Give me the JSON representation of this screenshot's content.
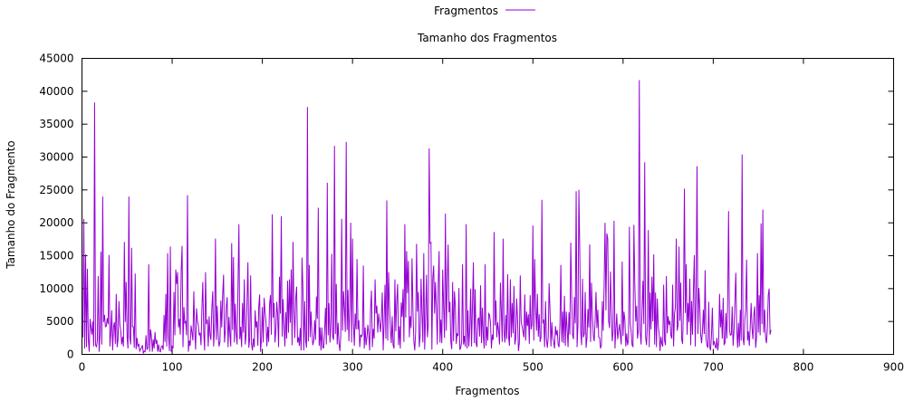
{
  "chart_data": {
    "type": "line",
    "title": "Tamanho dos Fragmentos",
    "xlabel": "Fragmentos",
    "ylabel": "Tamanho do Fragmento",
    "xlim": [
      0,
      900
    ],
    "ylim": [
      0,
      45000
    ],
    "x_ticks": [
      0,
      100,
      200,
      300,
      400,
      500,
      600,
      700,
      800,
      900
    ],
    "y_ticks": [
      0,
      5000,
      10000,
      15000,
      20000,
      25000,
      30000,
      35000,
      40000,
      45000
    ],
    "grid": false,
    "legend_position": "top-center",
    "series": [
      {
        "name": "Fragmentos",
        "color": "#9400d3",
        "x_start": 1,
        "x_step": 1,
        "values": [
          2600,
          20600,
          900,
          15200,
          1100,
          13000,
          2400,
          400,
          5400,
          4100,
          3000,
          5000,
          1200,
          38300,
          1500,
          1100,
          2000,
          11900,
          400,
          3000,
          15600,
          1500,
          24000,
          4900,
          6000,
          4200,
          4300,
          5500,
          4600,
          15100,
          1200,
          3300,
          6700,
          600,
          4200,
          4900,
          1600,
          9200,
          1100,
          2300,
          8100,
          4500,
          3600,
          1500,
          2700,
          1200,
          17100,
          4900,
          11000,
          2700,
          900,
          24000,
          2600,
          1500,
          16200,
          4200,
          4200,
          1000,
          12300,
          800,
          2500,
          1200,
          1600,
          500,
          800,
          1000,
          1400,
          200,
          500,
          400,
          2900,
          700,
          1000,
          13700,
          400,
          3800,
          2800,
          400,
          2300,
          900,
          3400,
          1600,
          2200,
          400,
          1500,
          500,
          400,
          1200,
          1300,
          700,
          6000,
          1900,
          9200,
          1200,
          15400,
          2800,
          500,
          16400,
          400,
          1200,
          900,
          9500,
          2900,
          12900,
          10700,
          12500,
          4100,
          5400,
          3000,
          12700,
          16500,
          1100,
          7200,
          4800,
          5000,
          2900,
          24200,
          400,
          2100,
          1300,
          4400,
          3300,
          2100,
          9600,
          3700,
          700,
          7000,
          5100,
          4400,
          2900,
          3300,
          1400,
          7100,
          11000,
          3300,
          600,
          12500,
          4600,
          5300,
          1200,
          5800,
          3000,
          2200,
          7000,
          9600,
          1200,
          4300,
          17600,
          2200,
          7400,
          3000,
          1200,
          1900,
          8200,
          4100,
          9100,
          12100,
          1800,
          3600,
          7200,
          8700,
          1100,
          5700,
          3100,
          1200,
          16900,
          3700,
          14800,
          1800,
          7700,
          3100,
          1500,
          10400,
          19800,
          2300,
          4200,
          1100,
          7800,
          3300,
          11400,
          1500,
          3000,
          8100,
          14000,
          1000,
          2400,
          12000,
          1600,
          600,
          2400,
          1100,
          6700,
          4100,
          5000,
          1300,
          7200,
          9100,
          400,
          2300,
          7200,
          1800,
          8600,
          6500,
          5000,
          1200,
          4200,
          1900,
          7600,
          9000,
          3000,
          21300,
          5600,
          7800,
          1800,
          3700,
          8000,
          6000,
          1100,
          11800,
          6200,
          21000,
          2700,
          8400,
          4300,
          1200,
          6400,
          2400,
          11200,
          3300,
          11400,
          4800,
          12900,
          1400,
          17100,
          6800,
          2500,
          8600,
          10300,
          1800,
          2600,
          1300,
          4000,
          600,
          14700,
          10000,
          600,
          8100,
          2100,
          1000,
          37600,
          2000,
          13600,
          2600,
          6500,
          3200,
          1400,
          2100,
          5200,
          2200,
          8800,
          5400,
          22300,
          1300,
          4100,
          600,
          4100,
          1000,
          1000,
          3500,
          7100,
          1500,
          26100,
          2900,
          7800,
          1800,
          4600,
          15300,
          2700,
          2200,
          31700,
          3100,
          10700,
          1500,
          4800,
          1700,
          500,
          2900,
          20600,
          3600,
          9600,
          7000,
          3400,
          32300,
          3700,
          9800,
          2000,
          7300,
          20000,
          1800,
          17600,
          4700,
          1300,
          6200,
          3800,
          14500,
          3800,
          5200,
          1100,
          3000,
          2700,
          3000,
          13500,
          900,
          4100,
          1400,
          2600,
          4500,
          3000,
          600,
          6900,
          9700,
          1100,
          3900,
          2400,
          11400,
          6200,
          7400,
          3300,
          6200,
          4800,
          3400,
          5700,
          9400,
          600,
          4800,
          10600,
          2400,
          23400,
          2100,
          12500,
          7300,
          3900,
          1700,
          5800,
          1400,
          900,
          11400,
          3500,
          8000,
          10700,
          1400,
          4300,
          900,
          7900,
          5700,
          9900,
          1900,
          19800,
          5600,
          15700,
          9300,
          14200,
          2600,
          5800,
          4000,
          14600,
          6700,
          2000,
          600,
          3500,
          16800,
          6500,
          9500,
          1100,
          2900,
          11500,
          6300,
          1800,
          15400,
          700,
          5600,
          12100,
          2600,
          4500,
          31300,
          16900,
          17000,
          700,
          11600,
          13500,
          6200,
          11000,
          7000,
          1500,
          10600,
          15700,
          1800,
          5300,
          1700,
          12900,
          7200,
          2500,
          21400,
          3600,
          10500,
          16700,
          6400,
          8000,
          1900,
          800,
          11000,
          2000,
          9600,
          7400,
          1600,
          3200,
          2800,
          10100,
          700,
          1000,
          2000,
          13700,
          1500,
          2800,
          1200,
          19800,
          900,
          6700,
          1200,
          3900,
          10000,
          1200,
          7400,
          14000,
          1700,
          9900,
          1700,
          1100,
          5300,
          5600,
          2700,
          10500,
          1700,
          7100,
          2800,
          900,
          13700,
          1300,
          4200,
          2100,
          6200,
          6000,
          4800,
          900,
          3000,
          2200,
          18600,
          4400,
          8200,
          2600,
          4900,
          3600,
          1500,
          10900,
          6500,
          1900,
          17600,
          3500,
          1800,
          6000,
          2300,
          12200,
          2700,
          1300,
          11400,
          2600,
          7800,
          3200,
          10400,
          1500,
          2400,
          8500,
          5300,
          500,
          1800,
          12000,
          5000,
          4300,
          3400,
          2600,
          9100,
          2100,
          6500,
          4300,
          6100,
          1600,
          9000,
          3800,
          4600,
          19600,
          2100,
          14500,
          7100,
          3600,
          9200,
          2700,
          6100,
          1900,
          2600,
          23500,
          4700,
          5300,
          1100,
          8100,
          2300,
          1000,
          2600,
          10800,
          6700,
          1200,
          4900,
          2500,
          1900,
          900,
          4300,
          2900,
          3700,
          1500,
          1100,
          4500,
          13600,
          1900,
          6500,
          1700,
          8900,
          1300,
          6500,
          3700,
          1100,
          6400,
          3000,
          17000,
          8600,
          3000,
          2300,
          8700,
          4700,
          24800,
          1100,
          4600,
          25000,
          15500,
          3500,
          1400,
          11500,
          2600,
          3100,
          9500,
          1000,
          2600,
          6900,
          4100,
          16700,
          1900,
          10900,
          6200,
          2900,
          2000,
          5200,
          9500,
          4000,
          6800,
          2600,
          2500,
          900,
          1400,
          8100,
          3600,
          10500,
          20000,
          6700,
          18400,
          17600,
          5100,
          4000,
          12600,
          6600,
          2000,
          3500,
          20300,
          900,
          3800,
          6200,
          2300,
          3500,
          4600,
          2900,
          1500,
          14100,
          2800,
          6500,
          5200,
          1200,
          3200,
          1400,
          2200,
          19400,
          4700,
          3500,
          1400,
          1200,
          19700,
          10800,
          5000,
          7400,
          2400,
          3600,
          41700,
          3400,
          1500,
          6800,
          11200,
          4600,
          29200,
          2600,
          1400,
          4600,
          18900,
          1100,
          9400,
          3800,
          11800,
          5000,
          15200,
          1500,
          9400,
          1100,
          8500,
          4500,
          3100,
          500,
          2700,
          1600,
          1200,
          10600,
          2100,
          1400,
          11900,
          3200,
          5800,
          4500,
          5100,
          2900,
          2400,
          10600,
          1200,
          6100,
          7200,
          17600,
          3600,
          4400,
          16400,
          5100,
          10900,
          2300,
          1600,
          7700,
          25200,
          6300,
          13700,
          3000,
          7800,
          4900,
          11500,
          1400,
          8100,
          3000,
          9700,
          15100,
          1200,
          9200,
          28600,
          3100,
          10100,
          7400,
          3100,
          1700,
          3500,
          6800,
          3100,
          12800,
          2500,
          1300,
          1100,
          8000,
          1200,
          600,
          2800,
          7100,
          1400,
          2000,
          1300,
          900,
          2500,
          600,
          1900,
          9200,
          4100,
          6800,
          2400,
          8600,
          1500,
          1700,
          6300,
          2400,
          7900,
          21800,
          3700,
          2900,
          3000,
          7300,
          1300,
          3600,
          8000,
          12400,
          4000,
          1000,
          4800,
          1200,
          6800,
          2100,
          30400,
          2600,
          1400,
          5300,
          6800,
          14400,
          2100,
          3500,
          1300,
          4200,
          7800,
          4000,
          2300,
          6000,
          7300,
          1000,
          2600,
          15400,
          3300,
          9000,
          2900,
          19900,
          4600,
          22000,
          3300,
          6800,
          2600,
          1700,
          3900,
          9000,
          10000,
          3000,
          3700
        ]
      }
    ]
  }
}
